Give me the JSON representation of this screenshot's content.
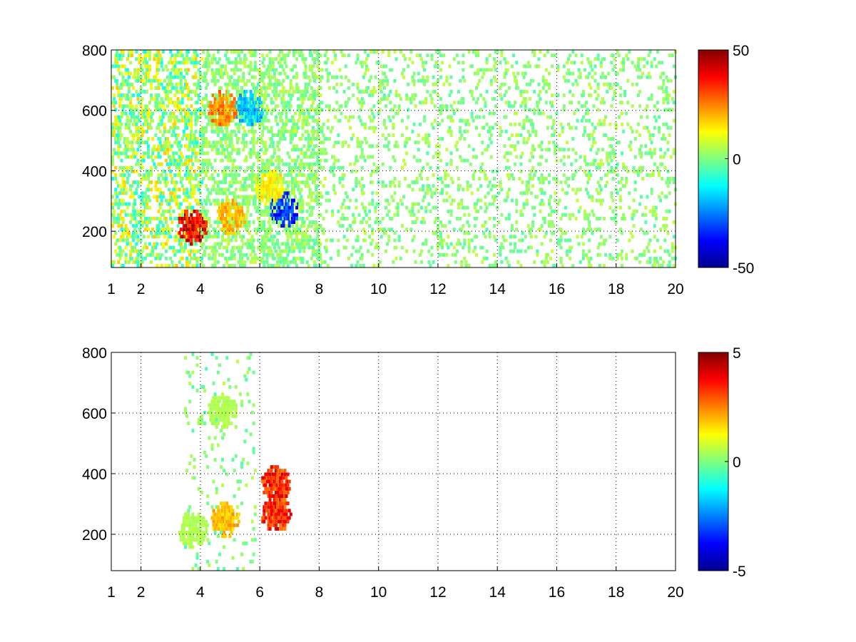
{
  "chart_data": [
    {
      "type": "heatmap",
      "title": "",
      "xlabel": "",
      "ylabel": "",
      "xlim": [
        1,
        20
      ],
      "ylim": [
        80,
        800
      ],
      "xticks": [
        "1",
        "2",
        "4",
        "6",
        "8",
        "10",
        "12",
        "14",
        "16",
        "18",
        "20"
      ],
      "yticks": [
        "200",
        "400",
        "600",
        "800"
      ],
      "grid": true,
      "colorbar": {
        "colormap": "jet",
        "min": -50,
        "max": 50,
        "ticks": [
          "50",
          "0",
          "-50"
        ]
      },
      "features": [
        {
          "description_value": 40,
          "x": 3.7,
          "y": 210
        },
        {
          "description_value": 25,
          "x": 4.7,
          "y": 600
        },
        {
          "description_value": -20,
          "x": 5.6,
          "y": 600
        },
        {
          "description_value": -35,
          "x": 6.8,
          "y": 265
        },
        {
          "description_value": 20,
          "x": 5.0,
          "y": 240
        },
        {
          "description_value": 15,
          "x": 6.3,
          "y": 340
        }
      ]
    },
    {
      "type": "heatmap",
      "title": "",
      "xlabel": "",
      "ylabel": "",
      "xlim": [
        1,
        20
      ],
      "ylim": [
        80,
        800
      ],
      "xticks": [
        "1",
        "2",
        "4",
        "6",
        "8",
        "10",
        "12",
        "14",
        "16",
        "18",
        "20"
      ],
      "yticks": [
        "200",
        "400",
        "600",
        "800"
      ],
      "grid": true,
      "colorbar": {
        "colormap": "jet",
        "min": -5,
        "max": 5,
        "ticks": [
          "5",
          "0",
          "-5"
        ]
      },
      "features": [
        {
          "description_value": 0.5,
          "x": 4.7,
          "y": 600
        },
        {
          "description_value": 0.5,
          "x": 3.7,
          "y": 210
        },
        {
          "description_value": 3.5,
          "x": 6.5,
          "y": 360
        },
        {
          "description_value": 3.5,
          "x": 6.5,
          "y": 260
        },
        {
          "description_value": 2,
          "x": 4.8,
          "y": 245
        }
      ]
    }
  ]
}
